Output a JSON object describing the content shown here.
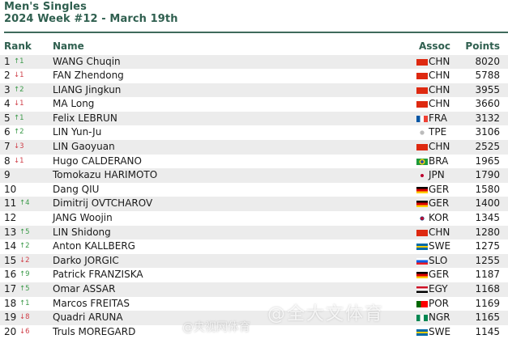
{
  "header": {
    "title": "Men's Singles",
    "subtitle": "2024 Week #12 - March 19th"
  },
  "columns": {
    "rank": "Rank",
    "name": "Name",
    "assoc": "Assoc",
    "points": "Points"
  },
  "colors": {
    "accent": "#2f5f4f",
    "up": "#3c9a4a",
    "down": "#d0404a",
    "stripe": "#ececec"
  },
  "rows": [
    {
      "rank": "1",
      "change": "↑1",
      "dir": "up",
      "name": "WANG Chuqin",
      "assoc": "CHN",
      "points": "8020",
      "flag": "linear-gradient(#de2910,#de2910)"
    },
    {
      "rank": "2",
      "change": "↓1",
      "dir": "down",
      "name": "FAN Zhendong",
      "assoc": "CHN",
      "points": "5788",
      "flag": "linear-gradient(#de2910,#de2910)"
    },
    {
      "rank": "3",
      "change": "↑2",
      "dir": "up",
      "name": "LIANG Jingkun",
      "assoc": "CHN",
      "points": "3955",
      "flag": "linear-gradient(#de2910,#de2910)"
    },
    {
      "rank": "4",
      "change": "↓1",
      "dir": "down",
      "name": "MA Long",
      "assoc": "CHN",
      "points": "3660",
      "flag": "linear-gradient(#de2910,#de2910)"
    },
    {
      "rank": "5",
      "change": "↑1",
      "dir": "up",
      "name": "Felix LEBRUN",
      "assoc": "FRA",
      "points": "3132",
      "flag": "linear-gradient(90deg,#0055a4 33%,#fff 33%,#fff 66%,#ef4135 66%)"
    },
    {
      "rank": "6",
      "change": "↑2",
      "dir": "up",
      "name": "LIN Yun-Ju",
      "assoc": "TPE",
      "points": "3106",
      "flag": "radial-gradient(circle,#bbb 30%,transparent 35%)"
    },
    {
      "rank": "7",
      "change": "↓3",
      "dir": "down",
      "name": "LIN Gaoyuan",
      "assoc": "CHN",
      "points": "2525",
      "flag": "linear-gradient(#de2910,#de2910)"
    },
    {
      "rank": "8",
      "change": "↓1",
      "dir": "down",
      "name": "Hugo CALDERANO",
      "assoc": "BRA",
      "points": "1965",
      "flag": "radial-gradient(circle,#2a4ea0 22%,#f7d117 25%,#f7d117 40%,#1e9a3c 45%)"
    },
    {
      "rank": "9",
      "change": "",
      "dir": "",
      "name": "Tomokazu HARIMOTO",
      "assoc": "JPN",
      "points": "1790",
      "flag": "radial-gradient(circle,#bc002d 22%,transparent 28%)"
    },
    {
      "rank": "10",
      "change": "",
      "dir": "",
      "name": "Dang QIU",
      "assoc": "GER",
      "points": "1580",
      "flag": "linear-gradient(#000 33%,#dd0000 33%,#dd0000 66%,#ffce00 66%)"
    },
    {
      "rank": "11",
      "change": "↑4",
      "dir": "up",
      "name": "Dimitrij OVTCHAROV",
      "assoc": "GER",
      "points": "1400",
      "flag": "linear-gradient(#000 33%,#dd0000 33%,#dd0000 66%,#ffce00 66%)"
    },
    {
      "rank": "12",
      "change": "",
      "dir": "",
      "name": "JANG Woojin",
      "assoc": "KOR",
      "points": "1345",
      "flag": "radial-gradient(circle,#c60c30 20%,#003478 28%,transparent 34%)"
    },
    {
      "rank": "13",
      "change": "↑5",
      "dir": "up",
      "name": "LIN Shidong",
      "assoc": "CHN",
      "points": "1280",
      "flag": "linear-gradient(#de2910,#de2910)"
    },
    {
      "rank": "14",
      "change": "↑2",
      "dir": "up",
      "name": "Anton KALLBERG",
      "assoc": "SWE",
      "points": "1275",
      "flag": "linear-gradient(#006aa7 40%,#fecc00 40%,#fecc00 60%,#006aa7 60%)"
    },
    {
      "rank": "15",
      "change": "↓2",
      "dir": "down",
      "name": "Darko JORGIC",
      "assoc": "SLO",
      "points": "1255",
      "flag": "linear-gradient(#fff 33%,#005ce6 33%,#005ce6 66%,#ed1c24 66%)"
    },
    {
      "rank": "16",
      "change": "↑9",
      "dir": "up",
      "name": "Patrick FRANZISKA",
      "assoc": "GER",
      "points": "1187",
      "flag": "linear-gradient(#000 33%,#dd0000 33%,#dd0000 66%,#ffce00 66%)"
    },
    {
      "rank": "17",
      "change": "↑5",
      "dir": "up",
      "name": "Omar ASSAR",
      "assoc": "EGY",
      "points": "1168",
      "flag": "linear-gradient(#ce1126 33%,#fff 33%,#fff 66%,#000 66%)"
    },
    {
      "rank": "18",
      "change": "↑1",
      "dir": "up",
      "name": "Marcos FREITAS",
      "assoc": "POR",
      "points": "1169",
      "flag": "linear-gradient(90deg,#006600 40%,#ff0000 40%)"
    },
    {
      "rank": "19",
      "change": "↓8",
      "dir": "down",
      "name": "Quadri ARUNA",
      "assoc": "NGR",
      "points": "1165",
      "flag": "linear-gradient(90deg,#008751 33%,#fff 33%,#fff 66%,#008751 66%)"
    },
    {
      "rank": "20",
      "change": "↓6",
      "dir": "down",
      "name": "Truls MOREGARD",
      "assoc": "SWE",
      "points": "1145",
      "flag": "linear-gradient(#006aa7 40%,#fecc00 40%,#fecc00 60%,#006aa7 60%)"
    }
  ],
  "watermark": {
    "weibo": "@央视网体育",
    "overlay": "@全大文体育"
  }
}
